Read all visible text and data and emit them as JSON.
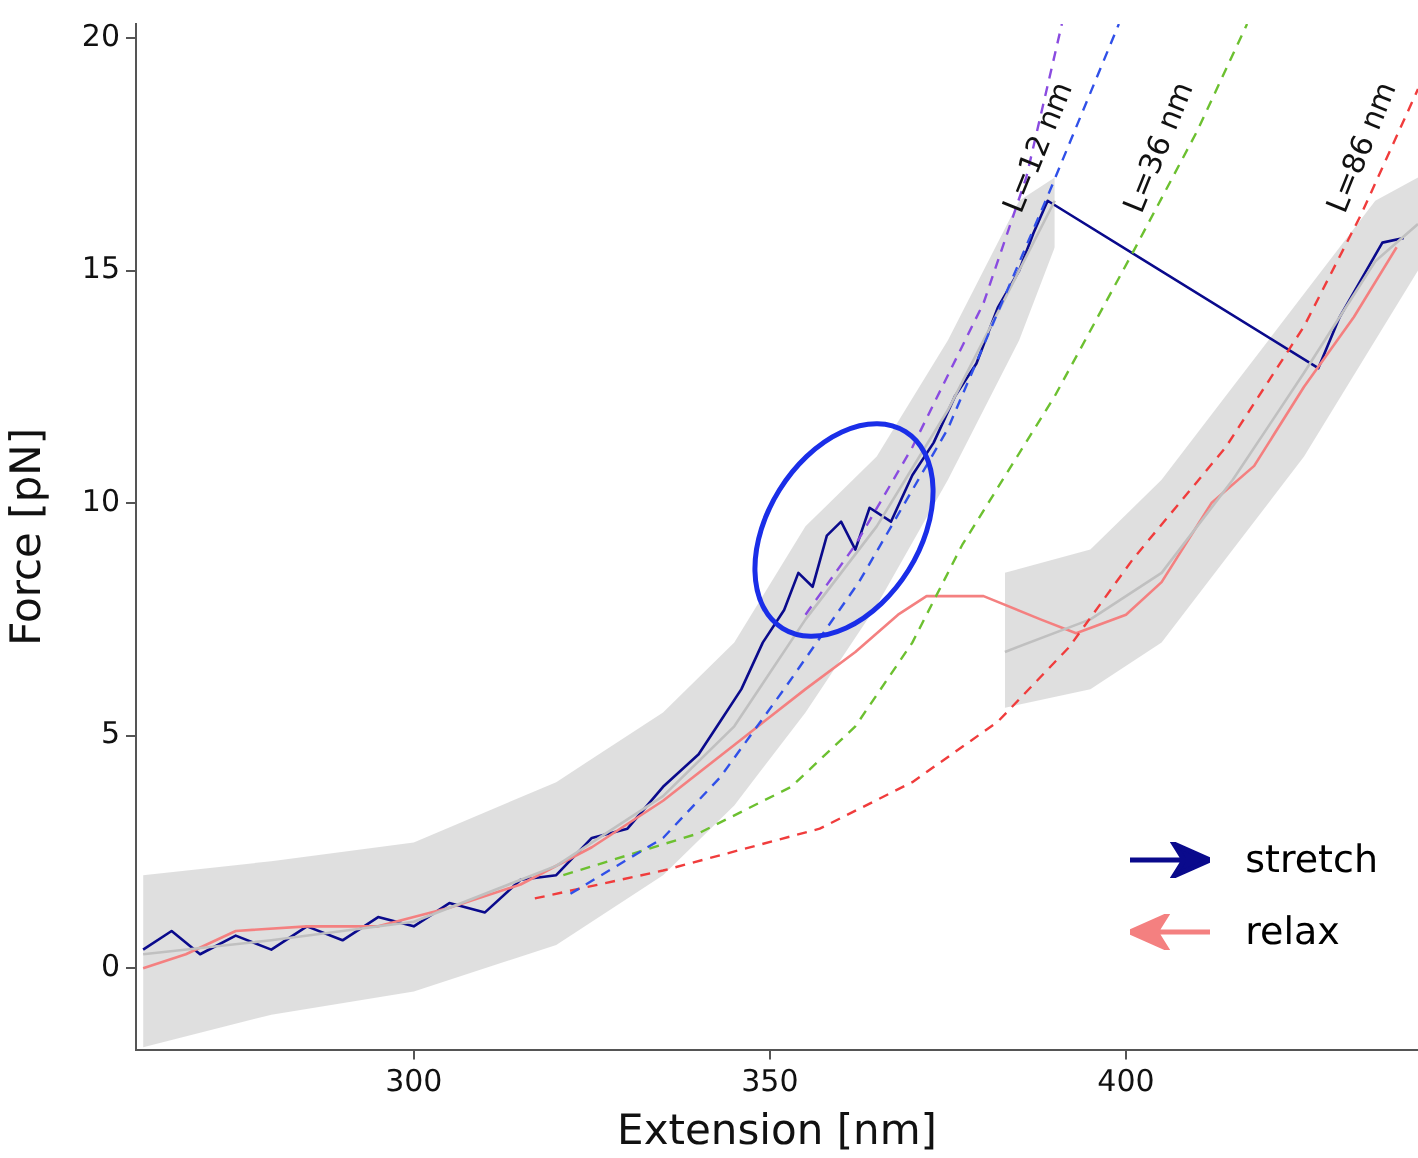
{
  "chart_data": {
    "type": "line",
    "xlabel": "Extension [nm]",
    "ylabel": "Force [pN]",
    "xlim": [
      261,
      441
    ],
    "xticks": [
      300,
      350,
      400
    ],
    "ylim": [
      -1.75,
      20.3
    ],
    "yticks": [
      0,
      5,
      10,
      15,
      20
    ],
    "grid": false,
    "legend": "bottom right",
    "marker": "none",
    "series": [
      {
        "color": "#c0c0c0",
        "x": [
          262,
          280,
          300,
          320,
          335,
          345,
          355,
          365,
          375,
          385,
          390
        ],
        "values": [
          0.3,
          0.6,
          1.0,
          2.2,
          3.7,
          5.2,
          7.5,
          9.5,
          12,
          15,
          16.5
        ],
        "lower": [
          -1.7,
          -1,
          -0.5,
          0.5,
          2,
          3.5,
          5.5,
          7.8,
          10.5,
          13.5,
          15.5
        ],
        "upper": [
          2,
          2.3,
          2.7,
          4,
          5.5,
          7,
          9.5,
          11,
          13.5,
          16.5,
          17
        ]
      },
      {
        "color": "#c0c0c0",
        "x": [
          383,
          395,
          405,
          415,
          425,
          435,
          441
        ],
        "values": [
          6.8,
          7.5,
          8.5,
          10.5,
          12.8,
          15.2,
          16
        ],
        "lower": [
          5.6,
          6,
          7,
          9,
          11,
          13.5,
          15
        ],
        "upper": [
          8.5,
          9,
          10.5,
          12.5,
          14.5,
          16.5,
          17
        ]
      },
      {
        "name": "relax",
        "color": "#f48080",
        "x": [
          262,
          268,
          275,
          285,
          295,
          305,
          315,
          325,
          335,
          345,
          355,
          362,
          368,
          372,
          380,
          388,
          393,
          400,
          405,
          412,
          418,
          425,
          432,
          438
        ],
        "values": [
          0.0,
          0.3,
          0.8,
          0.9,
          0.9,
          1.3,
          1.8,
          2.6,
          3.6,
          4.8,
          6.0,
          6.8,
          7.6,
          8.0,
          8.0,
          7.5,
          7.2,
          7.6,
          8.3,
          10.0,
          10.8,
          12.5,
          14.0,
          15.5
        ]
      },
      {
        "name": "stretch",
        "color": "#0a0a8c",
        "x": [
          262,
          266,
          270,
          275,
          280,
          285,
          290,
          295,
          300,
          305,
          310,
          315,
          320,
          325,
          330,
          335,
          340,
          343,
          346,
          349,
          352,
          354,
          356,
          358,
          360,
          362,
          364,
          367,
          370,
          373,
          376,
          379,
          382,
          385,
          387,
          389,
          427,
          430,
          433,
          436,
          439
        ],
        "values": [
          0.4,
          0.8,
          0.3,
          0.7,
          0.4,
          0.9,
          0.6,
          1.1,
          0.9,
          1.4,
          1.2,
          1.9,
          2.0,
          2.8,
          3.0,
          3.9,
          4.6,
          5.3,
          6.0,
          7.0,
          7.7,
          8.5,
          8.2,
          9.3,
          9.6,
          9.0,
          9.9,
          9.6,
          10.6,
          11.3,
          12.3,
          13.0,
          14.2,
          15.0,
          15.8,
          16.5,
          12.9,
          14.0,
          14.8,
          15.6,
          15.7
        ]
      },
      {
        "color": "#8a4be0",
        "line_style": "dashed",
        "x": [
          355,
          362,
          370,
          380,
          386,
          391
        ],
        "values": [
          7.6,
          9.1,
          11.2,
          14.3,
          17.0,
          20.3
        ]
      },
      {
        "color": "#3050e8",
        "line_style": "dashed",
        "x": [
          322,
          335,
          343,
          352,
          362.5,
          375,
          389,
          399
        ],
        "values": [
          1.6,
          2.8,
          4.1,
          6.0,
          8.3,
          11.6,
          16.6,
          20.3
        ]
      },
      {
        "color": "#6cc030",
        "line_style": "dashed",
        "x": [
          321,
          340,
          353,
          362,
          370,
          377,
          390,
          401,
          410,
          417
        ],
        "values": [
          2.0,
          2.9,
          3.9,
          5.2,
          7.0,
          9.1,
          12.3,
          15.4,
          18.0,
          20.3
        ]
      },
      {
        "color": "#f03c3c",
        "line_style": "dashed",
        "x": [
          317,
          335,
          357,
          370,
          382,
          392,
          401,
          414,
          425,
          433,
          441
        ],
        "values": [
          1.5,
          2.1,
          3.0,
          4.0,
          5.3,
          6.9,
          8.8,
          11.2,
          13.8,
          16.2,
          18.9
        ]
      }
    ],
    "annotations": [
      "L=12 nm",
      "L=36 nm",
      "L=86 nm"
    ]
  }
}
